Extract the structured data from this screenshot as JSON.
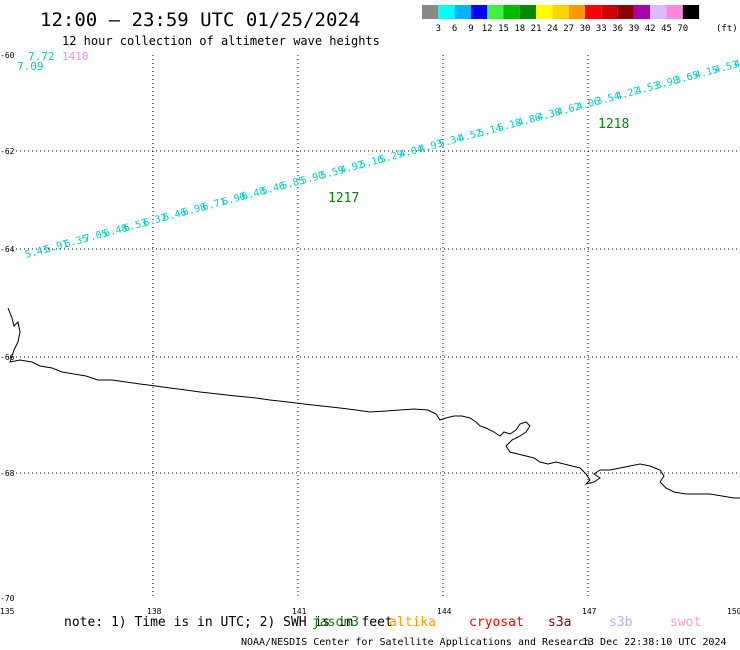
{
  "header": {
    "title": "12:00 – 23:59 UTC 01/25/2024",
    "subtitle": "12 hour collection of altimeter wave heights"
  },
  "scale": {
    "labels": [
      "3",
      "6",
      "9",
      "12",
      "15",
      "18",
      "21",
      "24",
      "27",
      "30",
      "33",
      "36",
      "39",
      "42",
      "45",
      "70"
    ],
    "unit": "(ft)",
    "colors": [
      "#888888",
      "#00ffff",
      "#00b4ff",
      "#0000ff",
      "#44ee44",
      "#00bb00",
      "#008800",
      "#ffff00",
      "#ffd200",
      "#ff9900",
      "#ff0000",
      "#cc0000",
      "#880000",
      "#aa00aa",
      "#ddbbff",
      "#ff88dd",
      "#000000"
    ]
  },
  "axes": {
    "lon_labels": [
      "135",
      "138",
      "141",
      "144",
      "147",
      "150"
    ],
    "lat_labels": [
      "-60",
      "-62",
      "-64",
      "-66",
      "-68",
      "-70"
    ]
  },
  "track": {
    "color": "#00cccc",
    "heights": [
      "5.41",
      "5.91",
      "6.35",
      "7.05",
      "6.48",
      "6.53",
      "6.32",
      "6.46",
      "6.98",
      "6.71",
      "6.90",
      "6.48",
      "5.46",
      "5.85",
      "5.90",
      "5.59",
      "4.92",
      "5.16",
      "5.29",
      "4.04",
      "4.93",
      "5.34",
      "4.52",
      "5.14",
      "5.18",
      "4.86",
      "4.38",
      "4.62",
      "4.06",
      "3.54",
      "4.22",
      "4.53",
      "3.98",
      "3.65",
      "4.15",
      "4.53",
      "4.11"
    ],
    "time_labels": [
      {
        "text": "1217",
        "color": "#008800"
      },
      {
        "text": "1218",
        "color": "#008800"
      }
    ]
  },
  "corner": {
    "heights": [
      "7.72",
      "7.09"
    ],
    "time_label": {
      "text": "1410",
      "color": "#ff88dd"
    }
  },
  "footer": {
    "note": "note: 1) Time is in UTC; 2) SWH is in feet",
    "legend": [
      {
        "name": "jason3",
        "color": "#008800"
      },
      {
        "name": "altika",
        "color": "#ff9900"
      },
      {
        "name": "cryosat",
        "color": "#ff0000"
      },
      {
        "name": "s3a",
        "color": "#880000"
      },
      {
        "name": "s3b",
        "color": "#bbaaff"
      },
      {
        "name": "swot",
        "color": "#ff99dd"
      }
    ],
    "credit": "NOAA/NESDIS Center for Satellite Applications and Research",
    "timestamp": "13 Dec 22:38:10 UTC 2024"
  }
}
